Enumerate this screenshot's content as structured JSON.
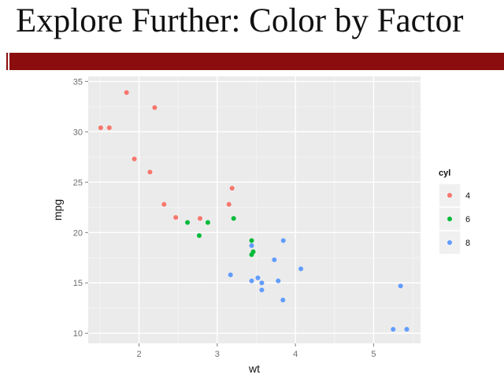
{
  "slide": {
    "title": "Explore Further: Color by Factor",
    "accent_color": "#8b0d0d"
  },
  "chart_data": {
    "type": "scatter",
    "title": "",
    "xlabel": "wt",
    "ylabel": "mpg",
    "xlim": [
      1.35,
      5.6
    ],
    "ylim": [
      9.0,
      35.5
    ],
    "x_ticks": [
      2,
      3,
      4,
      5
    ],
    "y_ticks": [
      10,
      15,
      20,
      25,
      30,
      35
    ],
    "grid": true,
    "background": "#ebebeb",
    "legend": {
      "title": "cyl",
      "placement": "right",
      "entries": [
        {
          "label": "4",
          "color": "#f8766d"
        },
        {
          "label": "6",
          "color": "#00ba38"
        },
        {
          "label": "8",
          "color": "#619cff"
        }
      ]
    },
    "series": [
      {
        "name": "4",
        "color": "#f8766d",
        "points": [
          [
            1.51,
            30.4
          ],
          [
            1.62,
            30.4
          ],
          [
            1.84,
            33.9
          ],
          [
            1.94,
            27.3
          ],
          [
            2.14,
            26.0
          ],
          [
            2.2,
            32.4
          ],
          [
            2.32,
            22.8
          ],
          [
            2.47,
            21.5
          ],
          [
            2.78,
            21.4
          ],
          [
            3.15,
            22.8
          ],
          [
            3.19,
            24.4
          ]
        ]
      },
      {
        "name": "6",
        "color": "#00ba38",
        "points": [
          [
            2.62,
            21.0
          ],
          [
            2.77,
            19.7
          ],
          [
            2.88,
            21.0
          ],
          [
            3.21,
            21.4
          ],
          [
            3.44,
            19.2
          ],
          [
            3.44,
            17.8
          ],
          [
            3.46,
            18.1
          ]
        ]
      },
      {
        "name": "8",
        "color": "#619cff",
        "points": [
          [
            3.17,
            15.8
          ],
          [
            3.44,
            18.7
          ],
          [
            3.44,
            15.2
          ],
          [
            3.52,
            15.5
          ],
          [
            3.57,
            14.3
          ],
          [
            3.57,
            15.0
          ],
          [
            3.73,
            17.3
          ],
          [
            3.78,
            15.2
          ],
          [
            3.84,
            13.3
          ],
          [
            3.845,
            19.2
          ],
          [
            4.07,
            16.4
          ],
          [
            5.25,
            10.4
          ],
          [
            5.345,
            14.7
          ],
          [
            5.424,
            10.4
          ]
        ]
      }
    ]
  }
}
